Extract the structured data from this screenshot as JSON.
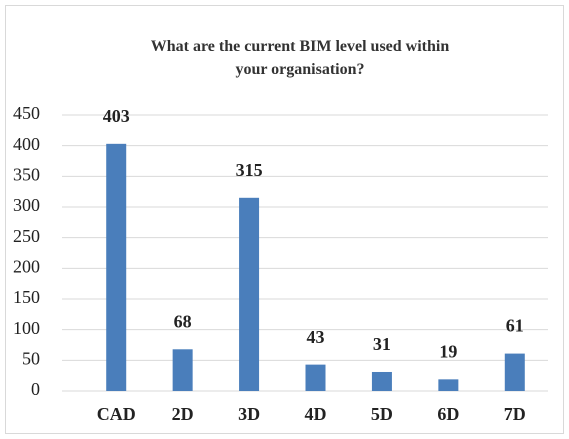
{
  "chart_data": {
    "type": "bar",
    "title": "What are the current BIM level used within your organisation?",
    "categories": [
      "CAD",
      "2D",
      "3D",
      "4D",
      "5D",
      "6D",
      "7D"
    ],
    "values": [
      403,
      68,
      315,
      43,
      31,
      19,
      61
    ],
    "color": "#4a7ebb",
    "ylim": [
      0,
      450
    ],
    "yticks": [
      0,
      50,
      100,
      150,
      200,
      250,
      300,
      350,
      400,
      450
    ],
    "grid": true
  }
}
